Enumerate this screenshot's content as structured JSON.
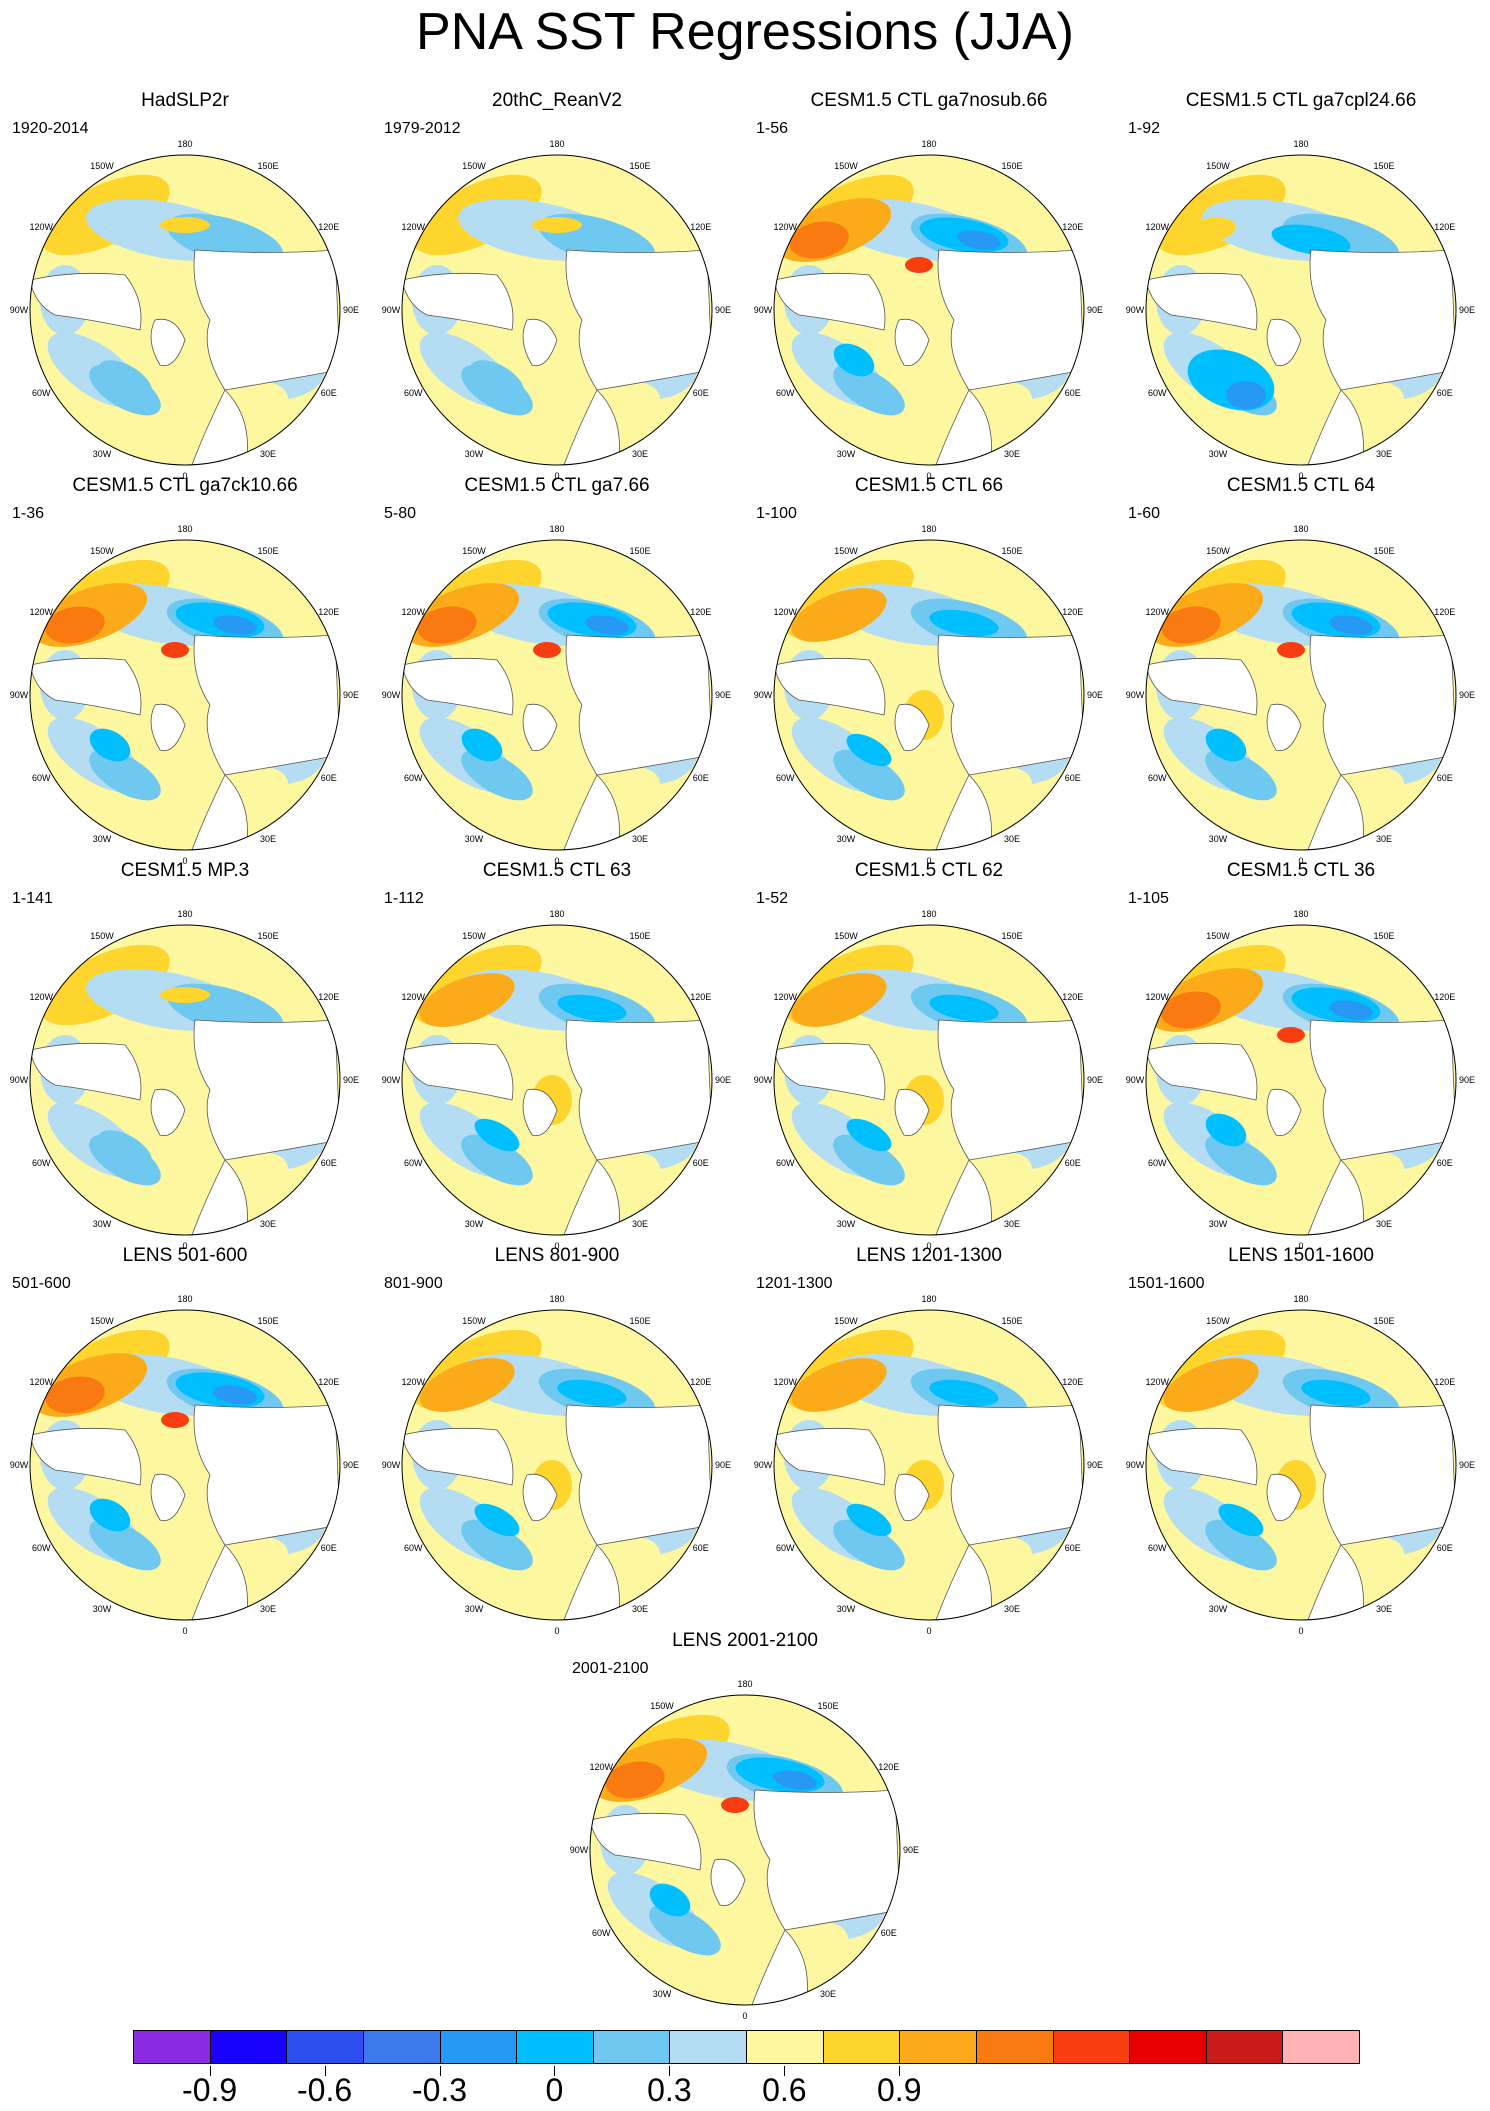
{
  "figure": {
    "title": "PNA SST Regressions (JJA)"
  },
  "lon_labels": [
    "180",
    "150E",
    "120E",
    "90E",
    "60E",
    "30E",
    "0",
    "30W",
    "60W",
    "90W",
    "120W",
    "150W"
  ],
  "panels": [
    {
      "title": "HadSLP2r",
      "years": "1920-2014",
      "pattern": "weak"
    },
    {
      "title": "20thC_ReanV2",
      "years": "1979-2012",
      "pattern": "weak"
    },
    {
      "title": "CESM1.5 CTL ga7nosub.66",
      "years": "1-56",
      "pattern": "strong"
    },
    {
      "title": "CESM1.5 CTL ga7cpl24.66",
      "years": "1-92",
      "pattern": "atlneg"
    },
    {
      "title": "CESM1.5 CTL ga7ck10.66",
      "years": "1-36",
      "pattern": "strong"
    },
    {
      "title": "CESM1.5 CTL ga7.66",
      "years": "5-80",
      "pattern": "strong"
    },
    {
      "title": "CESM1.5 CTL 66",
      "years": "1-100",
      "pattern": "medium"
    },
    {
      "title": "CESM1.5 CTL 64",
      "years": "1-60",
      "pattern": "strong"
    },
    {
      "title": "CESM1.5 MP.3",
      "years": "1-141",
      "pattern": "weak"
    },
    {
      "title": "CESM1.5 CTL 63",
      "years": "1-112",
      "pattern": "medium"
    },
    {
      "title": "CESM1.5 CTL 62",
      "years": "1-52",
      "pattern": "medium"
    },
    {
      "title": "CESM1.5 CTL 36",
      "years": "1-105",
      "pattern": "strong"
    },
    {
      "title": "LENS 501-600",
      "years": "501-600",
      "pattern": "strong"
    },
    {
      "title": "LENS 801-900",
      "years": "801-900",
      "pattern": "medium"
    },
    {
      "title": "LENS 1201-1300",
      "years": "1201-1300",
      "pattern": "medium"
    },
    {
      "title": "LENS 1501-1600",
      "years": "1501-1600",
      "pattern": "medium"
    },
    {
      "title": "LENS 2001-2100",
      "years": "2001-2100",
      "pattern": "strong"
    }
  ],
  "colorbar": {
    "colors": [
      "#8b2be2",
      "#1a00ff",
      "#2e4ef0",
      "#3c78ee",
      "#2898f5",
      "#00bfff",
      "#6fc8f0",
      "#b4dcf3",
      "#fdf7a0",
      "#fdd52c",
      "#fbab1a",
      "#f97a10",
      "#f83e10",
      "#e60000",
      "#c91b1b",
      "#ffb3b3"
    ],
    "labels": [
      "-0.9",
      "-0.6",
      "-0.3",
      "0",
      "0.3",
      "0.6",
      "0.9"
    ],
    "label_box_index": [
      2,
      5,
      8,
      11,
      14,
      17,
      20
    ]
  }
}
